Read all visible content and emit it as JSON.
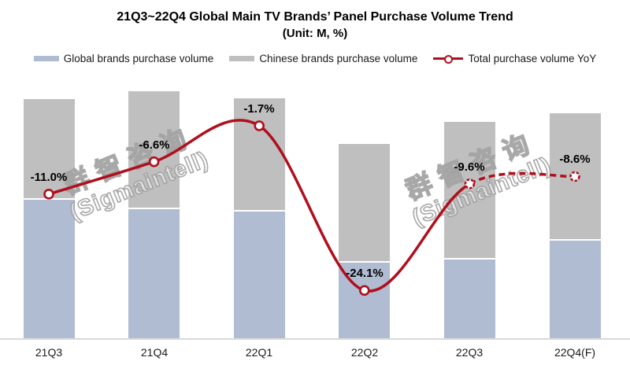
{
  "title": {
    "line1": "21Q3~22Q4 Global Main TV Brands’ Panel Purchase Volume Trend",
    "line2": "(Unit: M, %)"
  },
  "legend": {
    "items": [
      {
        "label": "Global brands purchase volume"
      },
      {
        "label": "Chinese brands purchase volume"
      },
      {
        "label": "Total purchase volume YoY"
      }
    ]
  },
  "watermark": {
    "cn": "群智咨询",
    "en": "(Sigmaintell)"
  },
  "colors": {
    "global_bar": "#b0bcd2",
    "chinese_bar": "#bfbfbf",
    "yoy_line": "#b00f1d",
    "axis_line": "#d9d9d9",
    "text": "#1a1a1a"
  },
  "chart_data": {
    "type": "bar",
    "subtype": "stacked-bar with smoothed YoY line overlay",
    "title": "21Q3~22Q4 Global Main TV Brands’ Panel Purchase Volume Trend",
    "subtitle": "(Unit: M, %)",
    "categories": [
      "21Q3",
      "21Q4",
      "22Q1",
      "22Q2",
      "22Q3",
      "22Q4(F)"
    ],
    "series": [
      {
        "name": "Global brands purchase volume",
        "type": "bar",
        "stack": "volume",
        "unit": "M",
        "values_estimated": [
          35.4,
          33.0,
          32.4,
          19.4,
          20.2,
          25.0
        ]
      },
      {
        "name": "Chinese brands purchase volume",
        "type": "bar",
        "stack": "volume",
        "unit": "M",
        "values_estimated": [
          25.2,
          29.6,
          28.4,
          29.8,
          34.6,
          32.0
        ]
      },
      {
        "name": "Total purchase volume YoY",
        "type": "line",
        "unit": "%",
        "values": [
          -11.0,
          -6.6,
          -1.7,
          -24.1,
          -9.6,
          -8.6
        ],
        "point_labels": [
          "-11.0%",
          "-6.6%",
          "-1.7%",
          "-24.1%",
          "-9.6%",
          "-8.6%"
        ],
        "dashed_forecast_from_category": "22Q3"
      }
    ],
    "value_axis_visible": false,
    "gridlines": false,
    "legend_position": "top",
    "note": "No numeric value axis shown; bar values estimated from relative bar heights."
  }
}
